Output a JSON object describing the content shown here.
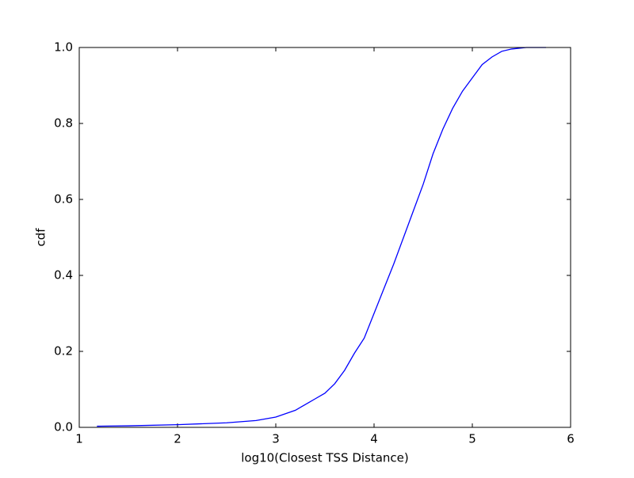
{
  "chart_data": {
    "type": "line",
    "x_label": "log10(Closest TSS Distance)",
    "y_label": "cdf",
    "x": [
      1.18,
      1.5,
      2.0,
      2.5,
      2.8,
      3.0,
      3.2,
      3.4,
      3.5,
      3.6,
      3.7,
      3.8,
      3.9,
      4.0,
      4.1,
      4.2,
      4.3,
      4.4,
      4.5,
      4.6,
      4.7,
      4.8,
      4.9,
      5.0,
      5.1,
      5.2,
      5.3,
      5.4,
      5.55,
      5.75
    ],
    "series": [
      {
        "color": "#0000ff",
        "values": [
          0.003,
          0.004,
          0.007,
          0.012,
          0.018,
          0.027,
          0.045,
          0.075,
          0.09,
          0.115,
          0.15,
          0.195,
          0.235,
          0.3,
          0.365,
          0.43,
          0.5,
          0.57,
          0.64,
          0.72,
          0.785,
          0.84,
          0.885,
          0.92,
          0.955,
          0.975,
          0.99,
          0.996,
          1.0,
          1.0
        ]
      }
    ],
    "xlim": [
      1,
      6
    ],
    "xticks": [
      1,
      2,
      3,
      4,
      5,
      6
    ],
    "ylim": [
      0,
      1
    ],
    "yticks": [
      {
        "value": 0,
        "label": "0.0"
      },
      {
        "value": 0.2,
        "label": "0.2"
      },
      {
        "value": 0.4,
        "label": "0.4"
      },
      {
        "value": 0.6,
        "label": "0.6"
      },
      {
        "value": 0.8,
        "label": "0.8"
      },
      {
        "value": 1,
        "label": "1.0"
      }
    ],
    "grid": false
  }
}
